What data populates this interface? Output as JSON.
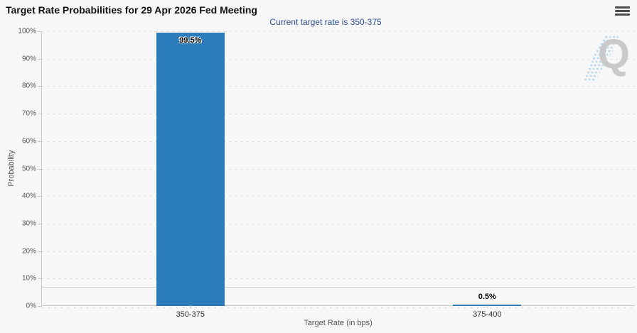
{
  "header": {
    "title": "Target Rate Probabilities for 29 Apr 2026 Fed Meeting",
    "menu_icon": "hamburger-menu-icon"
  },
  "subtitle": "Current target rate is 350-375",
  "watermark": {
    "letter": "Q",
    "name": "quikstrike-logo"
  },
  "chart_data": {
    "type": "bar",
    "title": "Target Rate Probabilities for 29 Apr 2026 Fed Meeting",
    "subtitle": "Current target rate is 350-375",
    "categories": [
      "350-375",
      "375-400"
    ],
    "values": [
      99.5,
      0.5
    ],
    "data_labels": [
      "99.5%",
      "0.5%"
    ],
    "xlabel": "Target Rate (in bps)",
    "ylabel": "Probability",
    "ylim": [
      0,
      100
    ],
    "ytick_step": 10,
    "ytick_labels": [
      "0%",
      "10%",
      "20%",
      "30%",
      "40%",
      "50%",
      "60%",
      "70%",
      "80%",
      "90%",
      "100%"
    ],
    "grid": "dotted-horizontal",
    "reference_line_value": 7,
    "legend": "none"
  },
  "colors": {
    "background": "#f7f7f7",
    "bar": "#2b7cba",
    "subtitle": "#2c4c9c",
    "grid": "#d4d4d4",
    "axis_line": "#c8c8c8",
    "title": "#111111",
    "watermark": "#c9c9c9",
    "watermark_stripes": "#bcd9ec"
  }
}
